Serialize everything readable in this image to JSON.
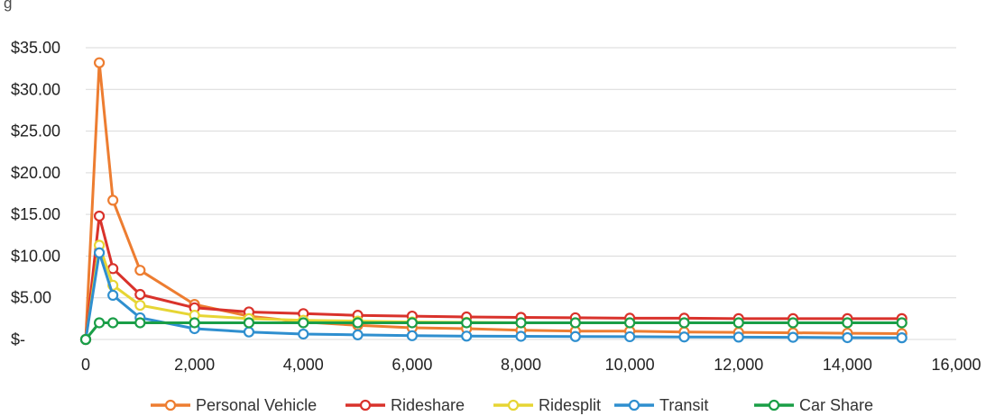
{
  "header": {
    "text": "g"
  },
  "chart_data": {
    "type": "line",
    "title": "",
    "xlabel": "",
    "ylabel": "",
    "xlim": [
      0,
      16000
    ],
    "ylim": [
      0,
      35
    ],
    "grid": true,
    "legend_position": "bottom",
    "x_ticks": [
      {
        "value": 0,
        "label": "0"
      },
      {
        "value": 2000,
        "label": "2,000"
      },
      {
        "value": 4000,
        "label": "4,000"
      },
      {
        "value": 6000,
        "label": "6,000"
      },
      {
        "value": 8000,
        "label": "8,000"
      },
      {
        "value": 10000,
        "label": "10,000"
      },
      {
        "value": 12000,
        "label": "12,000"
      },
      {
        "value": 14000,
        "label": "14,000"
      },
      {
        "value": 16000,
        "label": "16,000"
      }
    ],
    "y_ticks": [
      {
        "value": 0,
        "label": "$-"
      },
      {
        "value": 5,
        "label": "$5.00"
      },
      {
        "value": 10,
        "label": "$10.00"
      },
      {
        "value": 15,
        "label": "$15.00"
      },
      {
        "value": 20,
        "label": "$20.00"
      },
      {
        "value": 25,
        "label": "$25.00"
      },
      {
        "value": 30,
        "label": "$30.00"
      },
      {
        "value": 35,
        "label": "$35.00"
      }
    ],
    "x": [
      0,
      250,
      500,
      1000,
      2000,
      3000,
      4000,
      5000,
      6000,
      7000,
      8000,
      9000,
      10000,
      11000,
      12000,
      13000,
      14000,
      15000
    ],
    "series": [
      {
        "name": "Personal Vehicle",
        "color": "#ed7d31",
        "values": [
          0,
          33.2,
          16.7,
          8.3,
          4.2,
          2.8,
          2.1,
          1.7,
          1.4,
          1.3,
          1.1,
          1.0,
          1.0,
          0.9,
          0.85,
          0.8,
          0.75,
          0.7
        ]
      },
      {
        "name": "Rideshare",
        "color": "#d9322b",
        "values": [
          0,
          14.8,
          8.5,
          5.4,
          3.8,
          3.3,
          3.1,
          2.9,
          2.8,
          2.7,
          2.65,
          2.6,
          2.55,
          2.55,
          2.5,
          2.5,
          2.5,
          2.5
        ]
      },
      {
        "name": "Ridesplit",
        "color": "#e6d534",
        "values": [
          0,
          11.3,
          6.5,
          4.1,
          2.9,
          2.5,
          2.3,
          2.2,
          2.1,
          2.05,
          2.0,
          2.0,
          2.0,
          2.0,
          2.0,
          2.0,
          2.0,
          2.0
        ]
      },
      {
        "name": "Transit",
        "color": "#2f8fcf",
        "values": [
          0,
          10.4,
          5.3,
          2.6,
          1.3,
          0.9,
          0.65,
          0.55,
          0.45,
          0.4,
          0.38,
          0.35,
          0.33,
          0.3,
          0.28,
          0.26,
          0.22,
          0.2
        ]
      },
      {
        "name": "Car Share",
        "color": "#1a9e47",
        "values": [
          0,
          2.0,
          2.0,
          2.0,
          2.0,
          2.0,
          2.0,
          2.0,
          2.0,
          2.0,
          2.0,
          2.0,
          2.0,
          2.0,
          2.0,
          2.0,
          2.0,
          2.0
        ]
      }
    ]
  }
}
